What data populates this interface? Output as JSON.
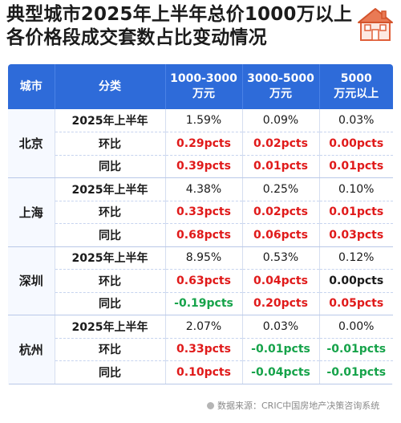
{
  "title": {
    "line1": "典型城市2025年上半年总价1000万以上",
    "line2": "各价格段成交套数占比变动情况"
  },
  "colors": {
    "header_bg": "#2e6bd9",
    "positive": "#e01a1a",
    "negative": "#16a34a"
  },
  "table": {
    "headers": {
      "city": "城市",
      "category": "分类",
      "col1_line1": "1000-3000",
      "col1_line2": "万元",
      "col2_line1": "3000-5000",
      "col2_line2": "万元",
      "col3_line1": "5000",
      "col3_line2": "万元以上"
    },
    "groups": [
      {
        "city": "北京",
        "rows": [
          {
            "label": "2025年上半年",
            "v1": "1.59%",
            "v2": "0.09%",
            "v3": "0.03%"
          },
          {
            "label": "环比",
            "v1": "0.29pcts",
            "v2": "0.02pcts",
            "v3": "0.00pcts"
          },
          {
            "label": "同比",
            "v1": "0.39pcts",
            "v2": "0.01pcts",
            "v3": "0.01pcts"
          }
        ]
      },
      {
        "city": "上海",
        "rows": [
          {
            "label": "2025年上半年",
            "v1": "4.38%",
            "v2": "0.25%",
            "v3": "0.10%"
          },
          {
            "label": "环比",
            "v1": "0.33pcts",
            "v2": "0.02pcts",
            "v3": "0.01pcts"
          },
          {
            "label": "同比",
            "v1": "0.68pcts",
            "v2": "0.06pcts",
            "v3": "0.03pcts"
          }
        ]
      },
      {
        "city": "深圳",
        "rows": [
          {
            "label": "2025年上半年",
            "v1": "8.95%",
            "v2": "0.53%",
            "v3": "0.12%"
          },
          {
            "label": "环比",
            "v1": "0.63pcts",
            "v2": "0.04pcts",
            "v3": "0.00pcts"
          },
          {
            "label": "同比",
            "v1": "-0.19pcts",
            "v2": "0.20pcts",
            "v3": "0.05pcts"
          }
        ]
      },
      {
        "city": "杭州",
        "rows": [
          {
            "label": "2025年上半年",
            "v1": "2.07%",
            "v2": "0.03%",
            "v3": "0.00%"
          },
          {
            "label": "环比",
            "v1": "0.33pcts",
            "v2": "-0.01pcts",
            "v3": "-0.01pcts"
          },
          {
            "label": "同比",
            "v1": "0.10pcts",
            "v2": "-0.04pcts",
            "v3": "-0.01pcts"
          }
        ]
      }
    ]
  },
  "source": "数据来源：CRIC中国房地产决策咨询系统",
  "icons": [
    "house-logo-icon",
    "source-dot-icon"
  ]
}
